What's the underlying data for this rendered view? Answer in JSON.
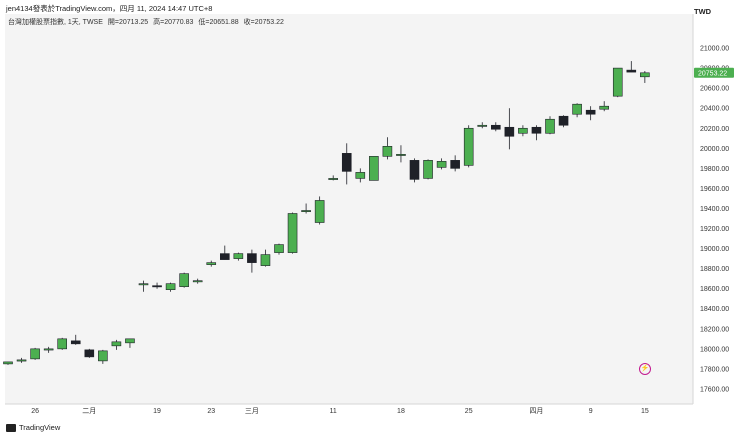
{
  "header": {
    "author_line": "jen4134發表於TradingView.com，四月 11, 2024 14:47 UTC+8",
    "currency": "TWD"
  },
  "legend": {
    "title": "台灣加權股票指數, 1天, TWSE",
    "open": "開=20713.25",
    "high": "高=20770.83",
    "low": "低=20651.88",
    "close": "收=20753.22"
  },
  "footer": {
    "brand": "TradingView"
  },
  "colors": {
    "up": "#4caf50",
    "down": "#1f2128",
    "bg": "#f4f4f4",
    "price_tag": "#4caf50"
  },
  "chart_data": {
    "type": "candlestick",
    "title": "台灣加權股票指數, 1天, TWSE",
    "ylim": [
      17450,
      21180
    ],
    "y_ticks": [
      "21000.00",
      "20800.00",
      "20600.00",
      "20400.00",
      "20200.00",
      "20000.00",
      "19800.00",
      "19600.00",
      "19400.00",
      "19200.00",
      "19000.00",
      "18800.00",
      "18600.00",
      "18400.00",
      "18200.00",
      "18000.00",
      "17800.00",
      "17600.00"
    ],
    "x_ticks": [
      {
        "label": "26",
        "index": 2
      },
      {
        "label": "二月",
        "index": 6
      },
      {
        "label": "19",
        "index": 11
      },
      {
        "label": "23",
        "index": 15
      },
      {
        "label": "三月",
        "index": 18
      },
      {
        "label": "11",
        "index": 24
      },
      {
        "label": "18",
        "index": 29
      },
      {
        "label": "25",
        "index": 34
      },
      {
        "label": "四月",
        "index": 39
      },
      {
        "label": "9",
        "index": 43
      },
      {
        "label": "15",
        "index": 47
      }
    ],
    "last_price": "20753.22",
    "candles": [
      {
        "o": 17850,
        "h": 17870,
        "l": 17840,
        "c": 17870
      },
      {
        "o": 17880,
        "h": 17910,
        "l": 17860,
        "c": 17890
      },
      {
        "o": 17900,
        "h": 18010,
        "l": 17890,
        "c": 18000
      },
      {
        "o": 17990,
        "h": 18020,
        "l": 17960,
        "c": 18000
      },
      {
        "o": 18000,
        "h": 18110,
        "l": 17990,
        "c": 18100
      },
      {
        "o": 18080,
        "h": 18140,
        "l": 18040,
        "c": 18050
      },
      {
        "o": 17990,
        "h": 18000,
        "l": 17910,
        "c": 17920
      },
      {
        "o": 17880,
        "h": 17990,
        "l": 17850,
        "c": 17980
      },
      {
        "o": 18030,
        "h": 18090,
        "l": 17990,
        "c": 18070
      },
      {
        "o": 18060,
        "h": 18100,
        "l": 18010,
        "c": 18100
      },
      {
        "o": 18650,
        "h": 18680,
        "l": 18570,
        "c": 18650
      },
      {
        "o": 18630,
        "h": 18660,
        "l": 18600,
        "c": 18620
      },
      {
        "o": 18590,
        "h": 18660,
        "l": 18570,
        "c": 18650
      },
      {
        "o": 18620,
        "h": 18760,
        "l": 18610,
        "c": 18750
      },
      {
        "o": 18680,
        "h": 18700,
        "l": 18650,
        "c": 18680
      },
      {
        "o": 18840,
        "h": 18880,
        "l": 18820,
        "c": 18860
      },
      {
        "o": 18950,
        "h": 19030,
        "l": 18890,
        "c": 18890
      },
      {
        "o": 18900,
        "h": 18960,
        "l": 18880,
        "c": 18950
      },
      {
        "o": 18950,
        "h": 18990,
        "l": 18760,
        "c": 18860
      },
      {
        "o": 18830,
        "h": 18990,
        "l": 18820,
        "c": 18940
      },
      {
        "o": 18960,
        "h": 19050,
        "l": 18940,
        "c": 19040
      },
      {
        "o": 18960,
        "h": 19360,
        "l": 18950,
        "c": 19350
      },
      {
        "o": 19380,
        "h": 19450,
        "l": 19350,
        "c": 19380
      },
      {
        "o": 19260,
        "h": 19520,
        "l": 19240,
        "c": 19480
      },
      {
        "o": 19700,
        "h": 19730,
        "l": 19680,
        "c": 19700
      },
      {
        "o": 19950,
        "h": 20050,
        "l": 19640,
        "c": 19770
      },
      {
        "o": 19700,
        "h": 19800,
        "l": 19660,
        "c": 19760
      },
      {
        "o": 19680,
        "h": 19920,
        "l": 19680,
        "c": 19920
      },
      {
        "o": 19920,
        "h": 20110,
        "l": 19890,
        "c": 20020
      },
      {
        "o": 19930,
        "h": 20030,
        "l": 19860,
        "c": 19940
      },
      {
        "o": 19880,
        "h": 19900,
        "l": 19660,
        "c": 19690
      },
      {
        "o": 19700,
        "h": 19890,
        "l": 19690,
        "c": 19880
      },
      {
        "o": 19810,
        "h": 19900,
        "l": 19790,
        "c": 19870
      },
      {
        "o": 19880,
        "h": 19930,
        "l": 19770,
        "c": 19800
      },
      {
        "o": 19830,
        "h": 20230,
        "l": 19810,
        "c": 20200
      },
      {
        "o": 20230,
        "h": 20260,
        "l": 20200,
        "c": 20230
      },
      {
        "o": 20230,
        "h": 20260,
        "l": 20170,
        "c": 20190
      },
      {
        "o": 20210,
        "h": 20400,
        "l": 19990,
        "c": 20120
      },
      {
        "o": 20150,
        "h": 20230,
        "l": 20120,
        "c": 20200
      },
      {
        "o": 20210,
        "h": 20230,
        "l": 20080,
        "c": 20150
      },
      {
        "o": 20150,
        "h": 20320,
        "l": 20140,
        "c": 20290
      },
      {
        "o": 20320,
        "h": 20330,
        "l": 20210,
        "c": 20230
      },
      {
        "o": 20340,
        "h": 20450,
        "l": 20310,
        "c": 20440
      },
      {
        "o": 20380,
        "h": 20420,
        "l": 20280,
        "c": 20340
      },
      {
        "o": 20390,
        "h": 20470,
        "l": 20370,
        "c": 20420
      },
      {
        "o": 20520,
        "h": 20800,
        "l": 20510,
        "c": 20800
      },
      {
        "o": 20780,
        "h": 20870,
        "l": 20760,
        "c": 20760
      },
      {
        "o": 20713.25,
        "h": 20770.83,
        "l": 20651.88,
        "c": 20753.22
      }
    ]
  }
}
